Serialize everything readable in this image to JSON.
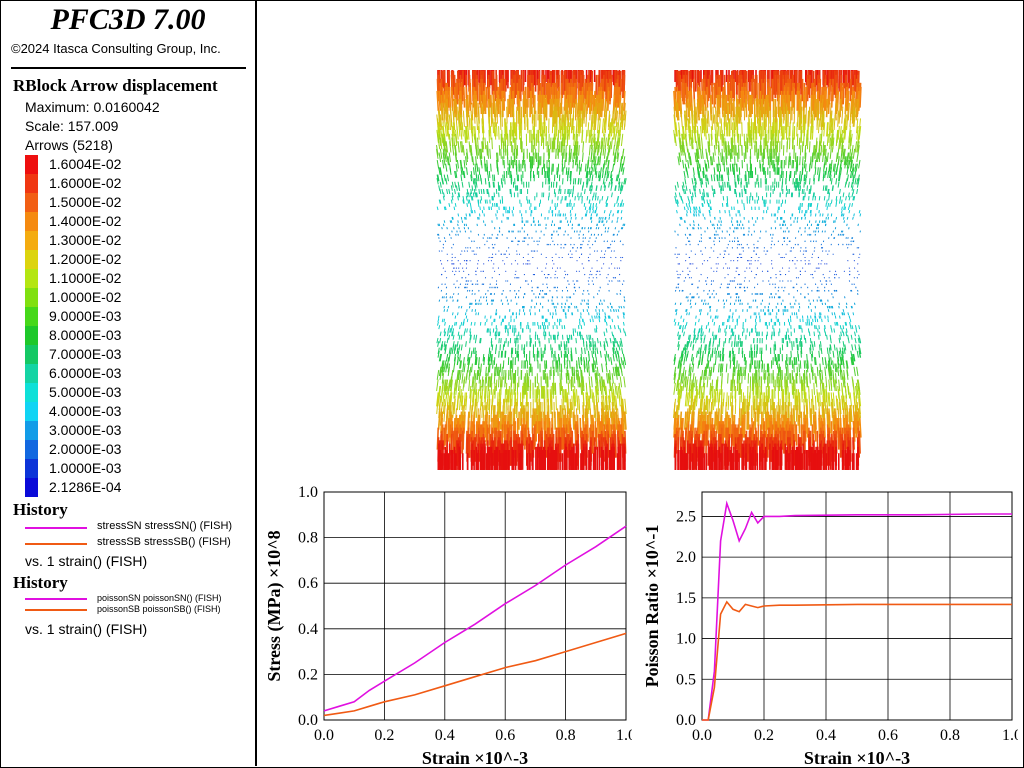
{
  "app": {
    "title": "PFC3D 7.00",
    "copyright": "©2024 Itasca Consulting Group, Inc."
  },
  "rblock": {
    "heading": "RBlock Arrow displacement",
    "maximum": "Maximum: 0.0160042",
    "scale": "Scale: 157.009",
    "arrows": "Arrows (5218)",
    "legend": [
      {
        "label": "1.6004E-02",
        "color": "#ee0f0f"
      },
      {
        "label": "1.6000E-02",
        "color": "#f03712"
      },
      {
        "label": "1.5000E-02",
        "color": "#f25f14"
      },
      {
        "label": "1.4000E-02",
        "color": "#f58a10"
      },
      {
        "label": "1.3000E-02",
        "color": "#f4ac10"
      },
      {
        "label": "1.2000E-02",
        "color": "#dcd40e"
      },
      {
        "label": "1.1000E-02",
        "color": "#b4e612"
      },
      {
        "label": "1.0000E-02",
        "color": "#80e010"
      },
      {
        "label": "9.0000E-03",
        "color": "#46d81a"
      },
      {
        "label": "8.0000E-03",
        "color": "#1ec82a"
      },
      {
        "label": "7.0000E-03",
        "color": "#14c864"
      },
      {
        "label": "6.0000E-03",
        "color": "#14d4a4"
      },
      {
        "label": "5.0000E-03",
        "color": "#0ee0d8"
      },
      {
        "label": "4.0000E-03",
        "color": "#10d4f4"
      },
      {
        "label": "3.0000E-03",
        "color": "#129ce8"
      },
      {
        "label": "2.0000E-03",
        "color": "#1268e0"
      },
      {
        "label": "1.0000E-03",
        "color": "#0c34d8"
      },
      {
        "label": "2.1286E-04",
        "color": "#0a0ad8"
      }
    ]
  },
  "history1": {
    "heading": "History",
    "items": [
      {
        "label": "stressSN stressSN() (FISH)",
        "color": "#e010e0"
      },
      {
        "label": "stressSB stressSB() (FISH)",
        "color": "#f05a14"
      }
    ],
    "vs": "vs. 1 strain() (FISH)"
  },
  "history2": {
    "heading": "History",
    "items": [
      {
        "label": "poissonSN poissonSN() (FISH)",
        "color": "#e010e0"
      },
      {
        "label": "poissonSB poissonSB() (FISH)",
        "color": "#f05a14"
      }
    ],
    "vs": "vs. 1 strain() (FISH)"
  },
  "chart_data": [
    {
      "type": "line",
      "xlabel": "Strain ×10^-3",
      "ylabel": "Stress (MPa) ×10^8",
      "xlim": [
        0,
        1.0
      ],
      "ylim": [
        0,
        1.0
      ],
      "xticks": [
        "0.0",
        "0.2",
        "0.4",
        "0.6",
        "0.8",
        "1.0"
      ],
      "yticks": [
        "0.0",
        "0.2",
        "0.4",
        "0.6",
        "0.8",
        "1.0"
      ],
      "grid": true,
      "series": [
        {
          "name": "stressSN",
          "color": "#e010e0",
          "x": [
            0.0,
            0.05,
            0.1,
            0.15,
            0.2,
            0.3,
            0.4,
            0.5,
            0.6,
            0.7,
            0.8,
            0.9,
            1.0
          ],
          "y": [
            0.04,
            0.06,
            0.08,
            0.13,
            0.17,
            0.25,
            0.34,
            0.42,
            0.51,
            0.59,
            0.68,
            0.76,
            0.85
          ]
        },
        {
          "name": "stressSB",
          "color": "#f05a14",
          "x": [
            0.0,
            0.05,
            0.1,
            0.15,
            0.2,
            0.3,
            0.4,
            0.5,
            0.6,
            0.7,
            0.8,
            0.9,
            1.0
          ],
          "y": [
            0.02,
            0.03,
            0.04,
            0.06,
            0.08,
            0.11,
            0.15,
            0.19,
            0.23,
            0.26,
            0.3,
            0.34,
            0.38
          ]
        }
      ]
    },
    {
      "type": "line",
      "xlabel": "Strain ×10^-3",
      "ylabel": "Poisson Ratio ×10^-1",
      "xlim": [
        0,
        1.0
      ],
      "ylim": [
        0,
        2.8
      ],
      "xticks": [
        "0.0",
        "0.2",
        "0.4",
        "0.6",
        "0.8",
        "1.0"
      ],
      "yticks": [
        "0.0",
        "0.5",
        "1.0",
        "1.5",
        "2.0",
        "2.5"
      ],
      "grid": true,
      "series": [
        {
          "name": "poissonSN",
          "color": "#e010e0",
          "x": [
            0.0,
            0.02,
            0.04,
            0.06,
            0.08,
            0.1,
            0.12,
            0.14,
            0.16,
            0.18,
            0.2,
            0.25,
            0.3,
            0.5,
            0.7,
            0.9,
            1.0
          ],
          "y": [
            0.0,
            0.0,
            0.6,
            2.2,
            2.66,
            2.45,
            2.2,
            2.35,
            2.55,
            2.42,
            2.5,
            2.5,
            2.51,
            2.52,
            2.52,
            2.53,
            2.53
          ]
        },
        {
          "name": "poissonSB",
          "color": "#f05a14",
          "x": [
            0.0,
            0.02,
            0.04,
            0.06,
            0.08,
            0.1,
            0.12,
            0.14,
            0.16,
            0.18,
            0.2,
            0.25,
            0.3,
            0.5,
            0.7,
            0.9,
            1.0
          ],
          "y": [
            0.0,
            0.0,
            0.4,
            1.3,
            1.45,
            1.36,
            1.33,
            1.42,
            1.4,
            1.38,
            1.4,
            1.41,
            1.41,
            1.42,
            1.42,
            1.42,
            1.42
          ]
        }
      ]
    }
  ]
}
